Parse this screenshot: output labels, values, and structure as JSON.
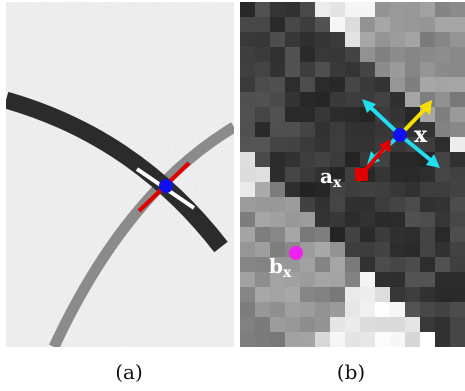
{
  "figure": {
    "panel_a": {
      "caption": "(a)"
    },
    "panel_b": {
      "caption": "(b)",
      "label_x": "x",
      "label_a": "a",
      "label_a_sub": "x",
      "label_b": "b",
      "label_b_sub": "x"
    }
  },
  "colors": {
    "marker_x": "#1010ee",
    "marker_a": "#e00000",
    "marker_b": "#ee22ee",
    "arrow_cyan": "#22ddee",
    "arrow_yellow": "#f5e000",
    "segment_red": "#e00000",
    "segment_white": "#ffffff"
  }
}
